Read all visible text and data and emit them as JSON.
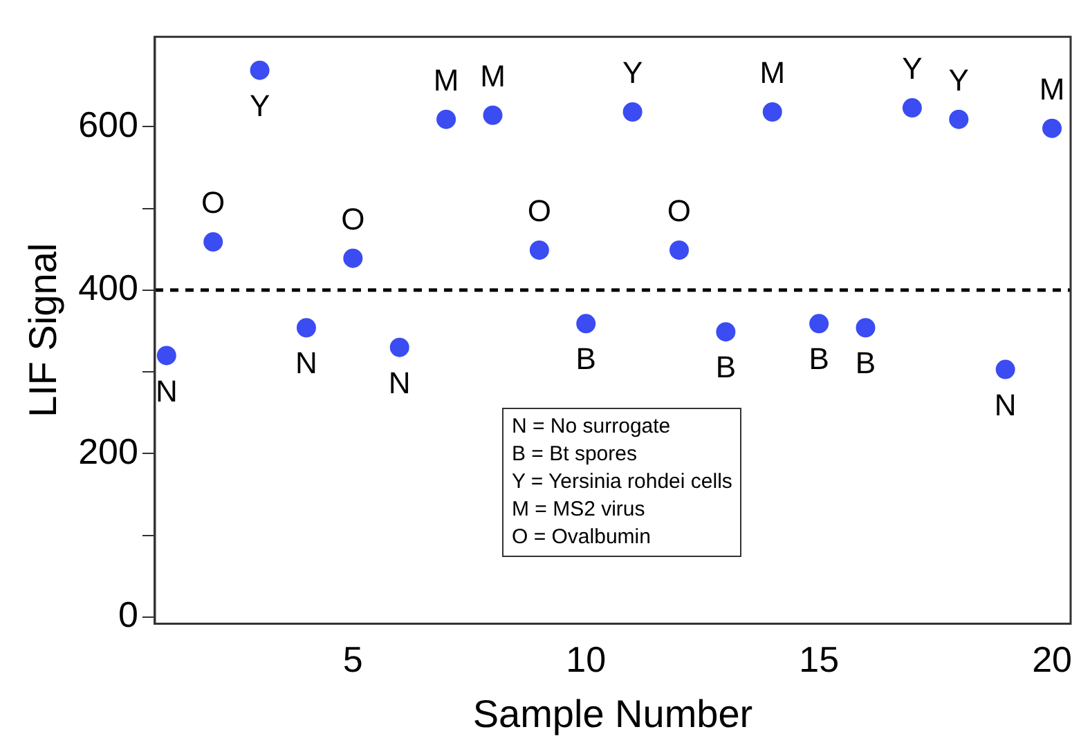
{
  "chart_data": {
    "type": "scatter",
    "xlabel": "Sample Number",
    "ylabel": "LIF Signal",
    "x": [
      1,
      2,
      3,
      4,
      5,
      6,
      7,
      8,
      9,
      10,
      11,
      12,
      13,
      14,
      15,
      16,
      17,
      18,
      19,
      20
    ],
    "series": [
      {
        "color": "#3b4cf2",
        "values": [
          320,
          459,
          669,
          354,
          439,
          330,
          609,
          614,
          449,
          359,
          618,
          449,
          349,
          618,
          359,
          354,
          623,
          609,
          303,
          598
        ]
      }
    ],
    "xlim": [
      0.75,
      20.4
    ],
    "xticks": [
      5,
      10,
      15,
      20
    ],
    "ylim": [
      -8,
      710
    ],
    "yticks": [
      0,
      {
        "value": 100,
        "label": null
      },
      200,
      {
        "value": 300,
        "label": null
      },
      400,
      {
        "value": 500,
        "label": null
      },
      600
    ],
    "ref_lines": [
      {
        "axis": "y",
        "value": 400,
        "color": "#000000",
        "line_style": "dashed"
      }
    ],
    "marker": "circle",
    "grid": false,
    "legend": false,
    "annotations": [
      {
        "text": "N",
        "x": 1,
        "y": 320
      },
      {
        "text": "O",
        "x": 2,
        "y": 459
      },
      {
        "text": "Y",
        "x": 3,
        "y": 669
      },
      {
        "text": "N",
        "x": 4,
        "y": 354
      },
      {
        "text": "O",
        "x": 5,
        "y": 439
      },
      {
        "text": "N",
        "x": 6,
        "y": 330
      },
      {
        "text": "M",
        "x": 7,
        "y": 609
      },
      {
        "text": "M",
        "x": 8,
        "y": 614
      },
      {
        "text": "O",
        "x": 9,
        "y": 449
      },
      {
        "text": "B",
        "x": 10,
        "y": 359
      },
      {
        "text": "Y",
        "x": 11,
        "y": 618
      },
      {
        "text": "O",
        "x": 12,
        "y": 449
      },
      {
        "text": "B",
        "x": 13,
        "y": 349
      },
      {
        "text": "M",
        "x": 14,
        "y": 618
      },
      {
        "text": "B",
        "x": 15,
        "y": 359
      },
      {
        "text": "B",
        "x": 16,
        "y": 354
      },
      {
        "text": "Y",
        "x": 17,
        "y": 623
      },
      {
        "text": "Y",
        "x": 18,
        "y": 609
      },
      {
        "text": "N",
        "x": 19,
        "y": 303
      },
      {
        "text": "M",
        "x": 20,
        "y": 598
      },
      "N = No surrogate",
      "B = Bt spores",
      "Y = Yersinia rohdei cells",
      "M = MS2 virus",
      "O = Ovalbumin"
    ]
  }
}
